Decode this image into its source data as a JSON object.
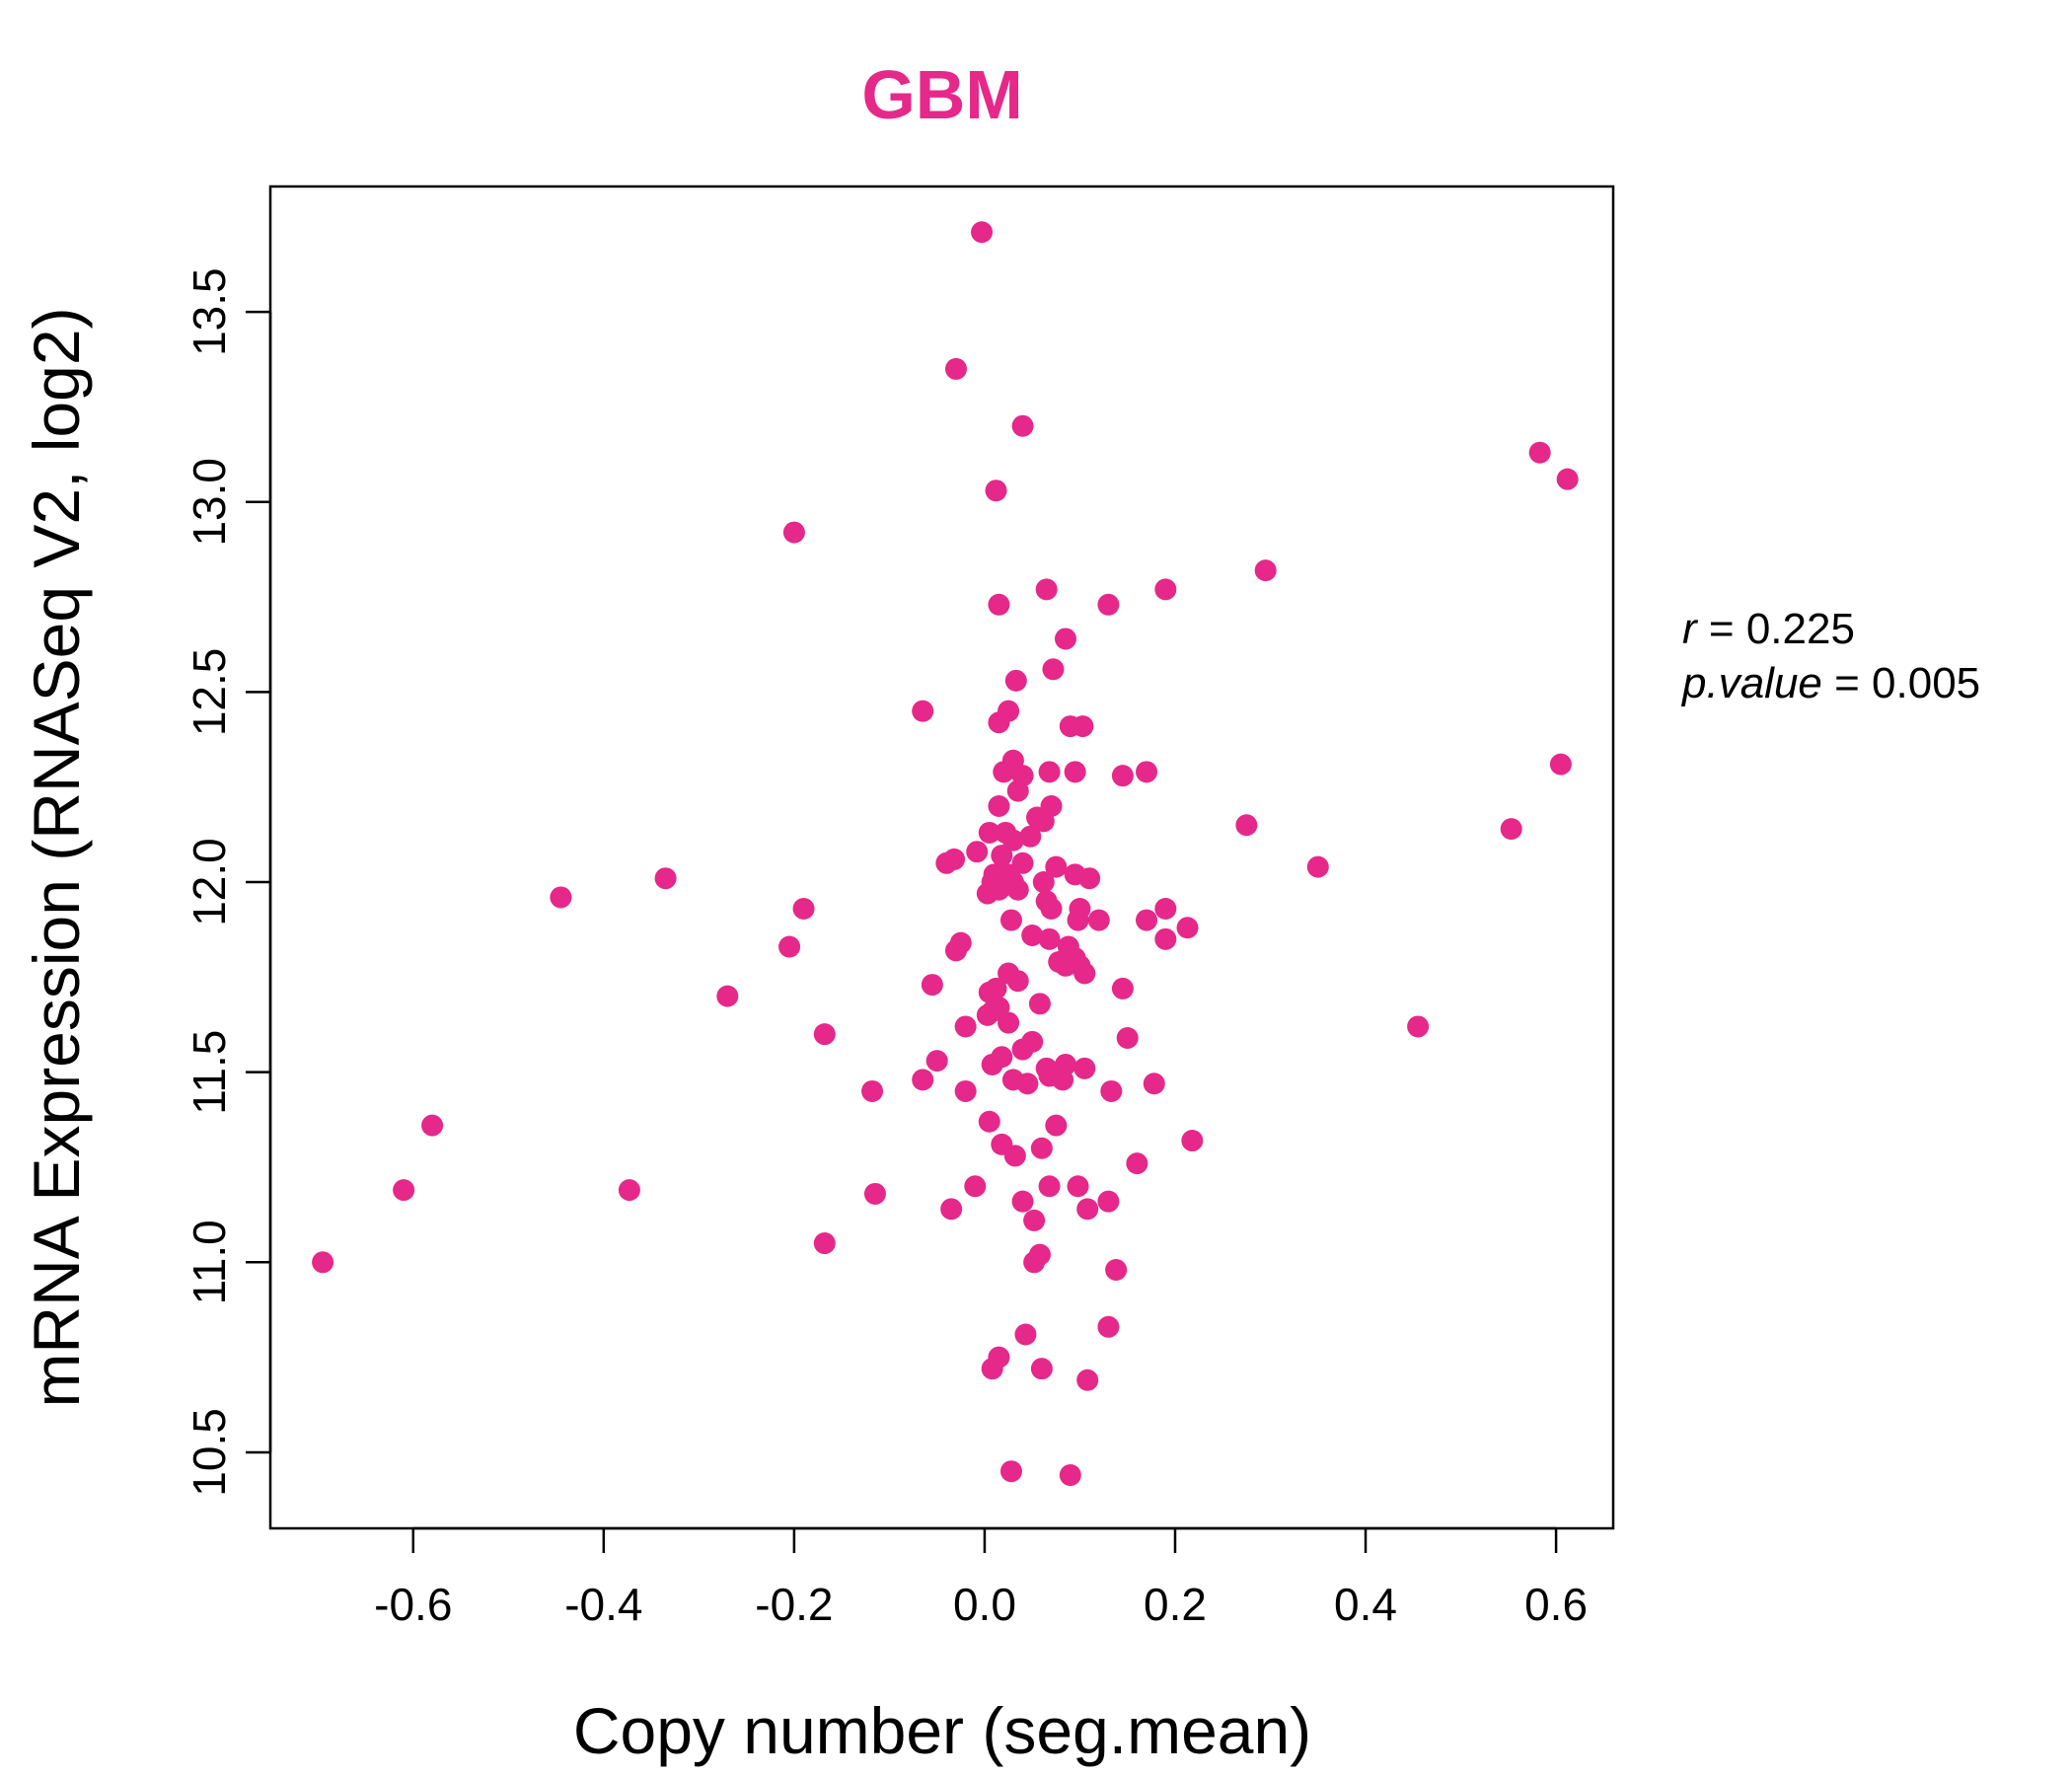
{
  "chart_data": {
    "type": "scatter",
    "title": "GBM",
    "title_color": "#e5288a",
    "point_color": "#e5288a",
    "xlabel": "Copy number (seg.mean)",
    "ylabel": "mRNA Expression (RNASeq V2, log2)",
    "xlim": [
      -0.75,
      0.66
    ],
    "ylim": [
      10.3,
      13.83
    ],
    "xticks": [
      -0.6,
      -0.4,
      -0.2,
      0.0,
      0.2,
      0.4,
      0.6
    ],
    "xtick_labels": [
      "-0.6",
      "-0.4",
      "-0.2",
      "0.0",
      "0.2",
      "0.4",
      "0.6"
    ],
    "yticks": [
      10.5,
      11.0,
      11.5,
      12.0,
      12.5,
      13.0,
      13.5
    ],
    "ytick_labels": [
      "10.5",
      "11.0",
      "11.5",
      "12.0",
      "12.5",
      "13.0",
      "13.5"
    ],
    "grid": false,
    "annotation": {
      "r_label": "r",
      "r_value": "0.225",
      "p_label": "p.value",
      "p_value": "0.005"
    },
    "points": [
      {
        "x": -0.003,
        "y": 13.71
      },
      {
        "x": -0.03,
        "y": 13.35
      },
      {
        "x": 0.04,
        "y": 13.2
      },
      {
        "x": 0.012,
        "y": 13.03
      },
      {
        "x": 0.583,
        "y": 13.13
      },
      {
        "x": 0.612,
        "y": 13.06
      },
      {
        "x": -0.2,
        "y": 12.92
      },
      {
        "x": 0.295,
        "y": 12.82
      },
      {
        "x": 0.065,
        "y": 12.77
      },
      {
        "x": 0.19,
        "y": 12.77
      },
      {
        "x": 0.015,
        "y": 12.73
      },
      {
        "x": 0.13,
        "y": 12.73
      },
      {
        "x": 0.085,
        "y": 12.64
      },
      {
        "x": 0.072,
        "y": 12.56
      },
      {
        "x": 0.033,
        "y": 12.53
      },
      {
        "x": -0.065,
        "y": 12.45
      },
      {
        "x": 0.025,
        "y": 12.45
      },
      {
        "x": 0.015,
        "y": 12.42
      },
      {
        "x": 0.09,
        "y": 12.41
      },
      {
        "x": 0.103,
        "y": 12.41
      },
      {
        "x": 0.03,
        "y": 12.32
      },
      {
        "x": 0.02,
        "y": 12.29
      },
      {
        "x": 0.04,
        "y": 12.28
      },
      {
        "x": 0.068,
        "y": 12.29
      },
      {
        "x": 0.095,
        "y": 12.29
      },
      {
        "x": 0.145,
        "y": 12.28
      },
      {
        "x": 0.17,
        "y": 12.29
      },
      {
        "x": 0.605,
        "y": 12.31
      },
      {
        "x": 0.035,
        "y": 12.24
      },
      {
        "x": 0.015,
        "y": 12.2
      },
      {
        "x": 0.07,
        "y": 12.2
      },
      {
        "x": 0.055,
        "y": 12.17
      },
      {
        "x": 0.062,
        "y": 12.16
      },
      {
        "x": 0.275,
        "y": 12.15
      },
      {
        "x": 0.553,
        "y": 12.14
      },
      {
        "x": 0.005,
        "y": 12.13
      },
      {
        "x": 0.022,
        "y": 12.13
      },
      {
        "x": 0.03,
        "y": 12.11
      },
      {
        "x": 0.048,
        "y": 12.12
      },
      {
        "x": -0.008,
        "y": 12.08
      },
      {
        "x": 0.018,
        "y": 12.07
      },
      {
        "x": -0.04,
        "y": 12.05
      },
      {
        "x": -0.032,
        "y": 12.06
      },
      {
        "x": 0.04,
        "y": 12.05
      },
      {
        "x": 0.075,
        "y": 12.04
      },
      {
        "x": 0.35,
        "y": 12.04
      },
      {
        "x": 0.01,
        "y": 12.02
      },
      {
        "x": 0.025,
        "y": 12.02
      },
      {
        "x": 0.095,
        "y": 12.02
      },
      {
        "x": 0.11,
        "y": 12.01
      },
      {
        "x": -0.335,
        "y": 12.01
      },
      {
        "x": 0.008,
        "y": 12.0
      },
      {
        "x": 0.02,
        "y": 11.99
      },
      {
        "x": 0.03,
        "y": 12.0
      },
      {
        "x": 0.062,
        "y": 12.0
      },
      {
        "x": 0.003,
        "y": 11.97
      },
      {
        "x": 0.015,
        "y": 11.98
      },
      {
        "x": 0.035,
        "y": 11.98
      },
      {
        "x": -0.445,
        "y": 11.96
      },
      {
        "x": 0.065,
        "y": 11.95
      },
      {
        "x": 0.07,
        "y": 11.93
      },
      {
        "x": 0.1,
        "y": 11.93
      },
      {
        "x": 0.19,
        "y": 11.93
      },
      {
        "x": -0.19,
        "y": 11.93
      },
      {
        "x": 0.028,
        "y": 11.9
      },
      {
        "x": 0.098,
        "y": 11.9
      },
      {
        "x": 0.12,
        "y": 11.9
      },
      {
        "x": 0.17,
        "y": 11.9
      },
      {
        "x": 0.213,
        "y": 11.88
      },
      {
        "x": 0.05,
        "y": 11.86
      },
      {
        "x": 0.068,
        "y": 11.85
      },
      {
        "x": 0.19,
        "y": 11.85
      },
      {
        "x": -0.025,
        "y": 11.84
      },
      {
        "x": 0.088,
        "y": 11.83
      },
      {
        "x": -0.205,
        "y": 11.83
      },
      {
        "x": -0.03,
        "y": 11.82
      },
      {
        "x": 0.095,
        "y": 11.8
      },
      {
        "x": 0.078,
        "y": 11.79
      },
      {
        "x": 0.085,
        "y": 11.78
      },
      {
        "x": 0.1,
        "y": 11.78
      },
      {
        "x": 0.105,
        "y": 11.76
      },
      {
        "x": 0.025,
        "y": 11.76
      },
      {
        "x": 0.035,
        "y": 11.74
      },
      {
        "x": -0.055,
        "y": 11.73
      },
      {
        "x": 0.145,
        "y": 11.72
      },
      {
        "x": 0.005,
        "y": 11.71
      },
      {
        "x": 0.012,
        "y": 11.72
      },
      {
        "x": -0.27,
        "y": 11.7
      },
      {
        "x": 0.058,
        "y": 11.68
      },
      {
        "x": 0.015,
        "y": 11.67
      },
      {
        "x": 0.008,
        "y": 11.66
      },
      {
        "x": 0.003,
        "y": 11.65
      },
      {
        "x": 0.025,
        "y": 11.63
      },
      {
        "x": -0.02,
        "y": 11.62
      },
      {
        "x": 0.455,
        "y": 11.62
      },
      {
        "x": -0.168,
        "y": 11.6
      },
      {
        "x": 0.15,
        "y": 11.59
      },
      {
        "x": 0.05,
        "y": 11.58
      },
      {
        "x": 0.04,
        "y": 11.56
      },
      {
        "x": 0.018,
        "y": 11.54
      },
      {
        "x": -0.05,
        "y": 11.53
      },
      {
        "x": 0.008,
        "y": 11.52
      },
      {
        "x": 0.065,
        "y": 11.51
      },
      {
        "x": 0.085,
        "y": 11.52
      },
      {
        "x": 0.105,
        "y": 11.51
      },
      {
        "x": 0.078,
        "y": 11.5
      },
      {
        "x": -0.065,
        "y": 11.48
      },
      {
        "x": 0.03,
        "y": 11.48
      },
      {
        "x": 0.045,
        "y": 11.47
      },
      {
        "x": 0.068,
        "y": 11.49
      },
      {
        "x": 0.082,
        "y": 11.48
      },
      {
        "x": 0.178,
        "y": 11.47
      },
      {
        "x": -0.02,
        "y": 11.45
      },
      {
        "x": -0.118,
        "y": 11.45
      },
      {
        "x": 0.133,
        "y": 11.45
      },
      {
        "x": 0.005,
        "y": 11.37
      },
      {
        "x": 0.075,
        "y": 11.36
      },
      {
        "x": -0.58,
        "y": 11.36
      },
      {
        "x": 0.018,
        "y": 11.31
      },
      {
        "x": 0.06,
        "y": 11.3
      },
      {
        "x": 0.218,
        "y": 11.32
      },
      {
        "x": 0.032,
        "y": 11.28
      },
      {
        "x": 0.16,
        "y": 11.26
      },
      {
        "x": -0.01,
        "y": 11.2
      },
      {
        "x": 0.068,
        "y": 11.2
      },
      {
        "x": 0.098,
        "y": 11.2
      },
      {
        "x": -0.61,
        "y": 11.19
      },
      {
        "x": -0.373,
        "y": 11.19
      },
      {
        "x": -0.115,
        "y": 11.18
      },
      {
        "x": 0.04,
        "y": 11.16
      },
      {
        "x": 0.13,
        "y": 11.16
      },
      {
        "x": -0.035,
        "y": 11.14
      },
      {
        "x": 0.108,
        "y": 11.14
      },
      {
        "x": 0.052,
        "y": 11.11
      },
      {
        "x": -0.168,
        "y": 11.05
      },
      {
        "x": 0.058,
        "y": 11.02
      },
      {
        "x": 0.052,
        "y": 11.0
      },
      {
        "x": -0.695,
        "y": 11.0
      },
      {
        "x": 0.138,
        "y": 10.98
      },
      {
        "x": 0.13,
        "y": 10.83
      },
      {
        "x": 0.043,
        "y": 10.81
      },
      {
        "x": 0.015,
        "y": 10.75
      },
      {
        "x": 0.008,
        "y": 10.72
      },
      {
        "x": 0.06,
        "y": 10.72
      },
      {
        "x": 0.108,
        "y": 10.69
      },
      {
        "x": 0.028,
        "y": 10.45
      },
      {
        "x": 0.09,
        "y": 10.44
      }
    ]
  }
}
